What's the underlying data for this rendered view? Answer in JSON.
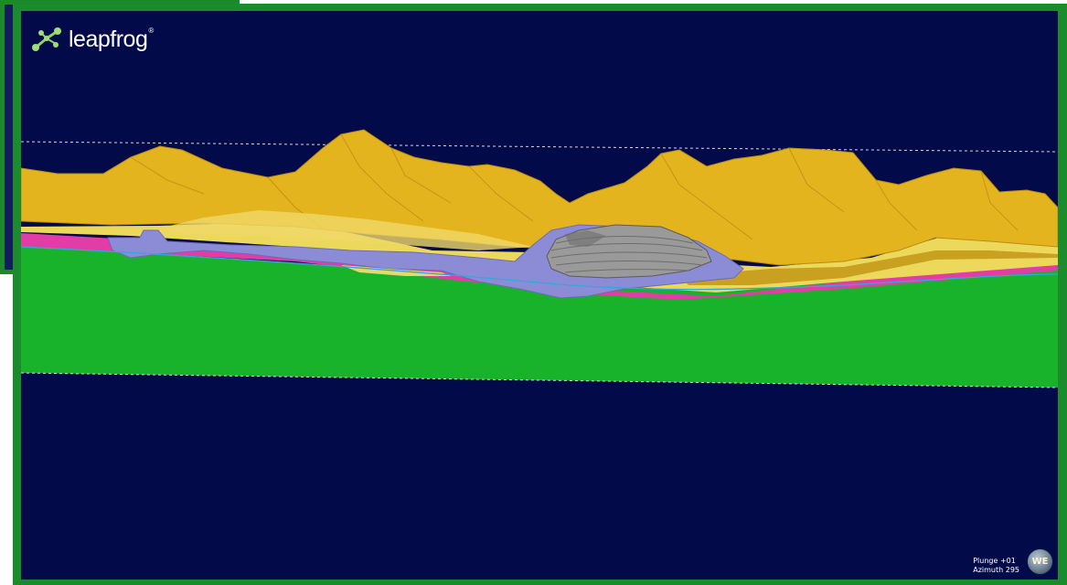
{
  "app": {
    "logo_text": "leapfrog",
    "logo_trademark": "®"
  },
  "viewport": {
    "plunge_label": "Plunge +01",
    "azimuth_label": "Azimuth 295",
    "compass_label": "WE"
  },
  "colors": {
    "background": "#020a4a",
    "terrain": "#e3b41d",
    "terrain_pale": "#ecd85a",
    "overburden": "#8c8cd6",
    "pit": "#9a9a9a",
    "basement": "#19b32b",
    "pink_layer": "#e23da6",
    "frame": "#1a8c2c",
    "water_line": "#33a7d8"
  },
  "icons": {
    "logo": "leapfrog-logo-icon",
    "compass": "compass-icon"
  }
}
